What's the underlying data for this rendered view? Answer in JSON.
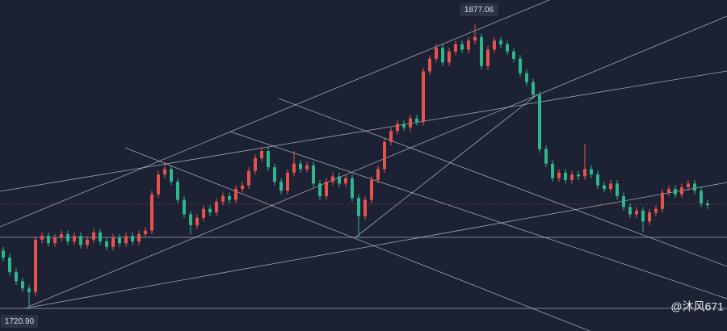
{
  "chart_data": {
    "type": "candlestick",
    "ylim": [
      1707.5,
      1890.45
    ],
    "up_color": "#e5544c",
    "down_color": "#2fb68b",
    "open": [
      1752,
      1748,
      1740,
      1735,
      1731,
      1729,
      1758,
      1760,
      1756,
      1759,
      1761,
      1757,
      1760,
      1755,
      1758,
      1762,
      1757,
      1754,
      1759,
      1756,
      1760,
      1757,
      1761,
      1763,
      1783,
      1794,
      1797,
      1790,
      1780,
      1772,
      1766,
      1770,
      1775,
      1773,
      1779,
      1782,
      1780,
      1786,
      1788,
      1796,
      1803,
      1807,
      1798,
      1790,
      1785,
      1795,
      1800,
      1797,
      1799,
      1789,
      1782,
      1790,
      1793,
      1789,
      1792,
      1781,
      1771,
      1780,
      1791,
      1797,
      1812,
      1818,
      1822,
      1820,
      1825,
      1823,
      1851,
      1858,
      1864,
      1856,
      1862,
      1866,
      1863,
      1868,
      1870,
      1854,
      1863,
      1868,
      1866,
      1862,
      1858,
      1850,
      1845,
      1838,
      1808,
      1800,
      1792,
      1795,
      1791,
      1794,
      1793,
      1797,
      1794,
      1788,
      1786,
      1789,
      1782,
      1776,
      1772,
      1774,
      1768,
      1773,
      1775,
      1784,
      1786,
      1783,
      1787,
      1789,
      1785,
      1778
    ],
    "high": [
      1754,
      1750,
      1742,
      1737,
      1733,
      1760,
      1762,
      1762,
      1761,
      1763,
      1763,
      1762,
      1762,
      1760,
      1764,
      1764,
      1759,
      1761,
      1761,
      1762,
      1762,
      1763,
      1765,
      1785,
      1796,
      1801,
      1799,
      1792,
      1782,
      1774,
      1772,
      1777,
      1777,
      1781,
      1784,
      1784,
      1788,
      1790,
      1798,
      1805,
      1809,
      1809,
      1800,
      1792,
      1797,
      1807,
      1802,
      1801,
      1801,
      1791,
      1792,
      1795,
      1795,
      1794,
      1794,
      1783,
      1782,
      1793,
      1799,
      1814,
      1820,
      1824,
      1824,
      1827,
      1827,
      1853,
      1860,
      1866,
      1866,
      1864,
      1868,
      1868,
      1870,
      1877.06,
      1872,
      1865,
      1870,
      1870,
      1868,
      1864,
      1860,
      1852,
      1847,
      1840,
      1810,
      1802,
      1797,
      1797,
      1796,
      1796,
      1811,
      1799,
      1796,
      1790,
      1791,
      1791,
      1784,
      1778,
      1776,
      1776,
      1775,
      1777,
      1786,
      1788,
      1788,
      1789,
      1791,
      1791,
      1787,
      1780
    ],
    "low": [
      1746,
      1738,
      1733,
      1729,
      1720.9,
      1727,
      1756,
      1754,
      1754,
      1757,
      1755,
      1755,
      1753,
      1753,
      1756,
      1755,
      1752,
      1752,
      1754,
      1754,
      1755,
      1755,
      1759,
      1761,
      1781,
      1792,
      1788,
      1778,
      1770,
      1761,
      1764,
      1768,
      1771,
      1771,
      1777,
      1778,
      1778,
      1784,
      1786,
      1794,
      1801,
      1796,
      1788,
      1783,
      1783,
      1793,
      1795,
      1795,
      1787,
      1780,
      1780,
      1788,
      1787,
      1787,
      1779,
      1759.7,
      1769,
      1778,
      1789,
      1795,
      1810,
      1816,
      1818,
      1818,
      1821,
      1821,
      1849,
      1856,
      1854,
      1854,
      1860,
      1861,
      1861,
      1866,
      1852,
      1852,
      1861,
      1864,
      1860,
      1856,
      1848,
      1843,
      1836,
      1806,
      1798,
      1790,
      1790,
      1789,
      1789,
      1791,
      1791,
      1792,
      1786,
      1784,
      1784,
      1780,
      1774,
      1770,
      1770,
      1762,
      1766,
      1771,
      1773,
      1782,
      1781,
      1781,
      1785,
      1783,
      1776,
      1775
    ],
    "close": [
      1748,
      1740,
      1735,
      1731,
      1729,
      1758,
      1760,
      1756,
      1759,
      1761,
      1757,
      1760,
      1755,
      1758,
      1762,
      1757,
      1754,
      1759,
      1756,
      1760,
      1757,
      1761,
      1763,
      1783,
      1794,
      1797,
      1790,
      1780,
      1772,
      1766,
      1770,
      1775,
      1773,
      1779,
      1782,
      1780,
      1786,
      1788,
      1796,
      1803,
      1807,
      1798,
      1790,
      1785,
      1795,
      1800,
      1797,
      1799,
      1789,
      1782,
      1790,
      1793,
      1789,
      1792,
      1781,
      1771,
      1780,
      1791,
      1797,
      1812,
      1818,
      1822,
      1820,
      1825,
      1823,
      1851,
      1858,
      1864,
      1856,
      1862,
      1866,
      1863,
      1868,
      1870,
      1854,
      1863,
      1868,
      1866,
      1862,
      1858,
      1850,
      1845,
      1838,
      1808,
      1800,
      1792,
      1795,
      1791,
      1794,
      1793,
      1797,
      1794,
      1788,
      1786,
      1789,
      1782,
      1776,
      1772,
      1774,
      1768,
      1773,
      1775,
      1784,
      1786,
      1783,
      1787,
      1789,
      1785,
      1778,
      1777
    ],
    "high_label": "1877.06",
    "low_label": "1720.90",
    "watermark": "@沐风671"
  }
}
